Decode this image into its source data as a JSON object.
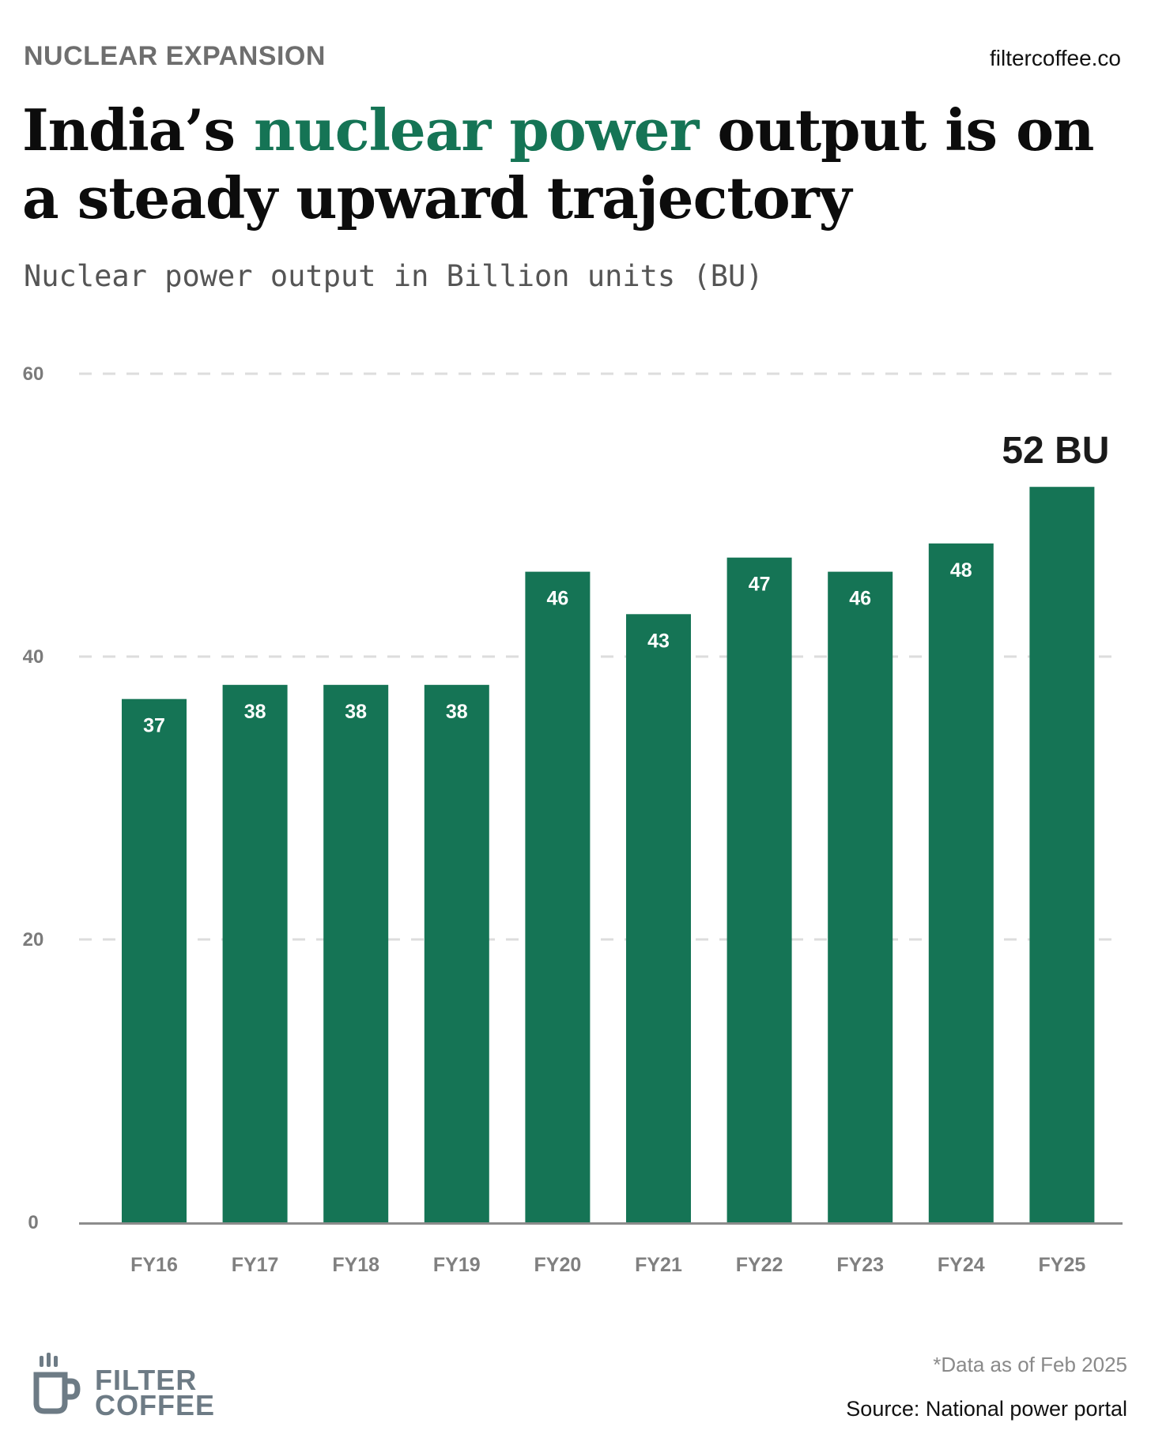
{
  "header": {
    "kicker": "NUCLEAR EXPANSION",
    "site": "filtercoffee.co",
    "title_before": "India’s ",
    "title_accent": "nuclear power",
    "title_after": " output is on a steady upward trajectory",
    "subtitle": "Nuclear power output in Billion units (BU)"
  },
  "colors": {
    "bar": "#157455",
    "accent": "#157455",
    "grid": "#dddddd",
    "axis": "#8c8c8c",
    "logo": "#6d7b85"
  },
  "chart_data": {
    "type": "bar",
    "title": "India’s nuclear power output is on a steady upward trajectory",
    "subtitle": "Nuclear power output in Billion units (BU)",
    "categories": [
      "FY16",
      "FY17",
      "FY18",
      "FY19",
      "FY20",
      "FY21",
      "FY22",
      "FY23",
      "FY24",
      "FY25"
    ],
    "values": [
      37,
      38,
      38,
      38,
      46,
      43,
      47,
      46,
      48,
      52
    ],
    "data_labels": [
      "37",
      "38",
      "38",
      "38",
      "46",
      "43",
      "47",
      "46",
      "48",
      ""
    ],
    "yticks": [
      0,
      20,
      40,
      60
    ],
    "ylim": [
      0,
      60
    ],
    "grid": true,
    "grid_style": "dashed",
    "annotations": [
      {
        "category": "FY25",
        "text": "52 BU"
      }
    ]
  },
  "footer": {
    "logo_line1": "FILTER",
    "logo_line2": "COFFEE",
    "logo_icon": "coffee-cup-icon",
    "note": "*Data as of Feb 2025",
    "source": "Source: National power portal"
  }
}
